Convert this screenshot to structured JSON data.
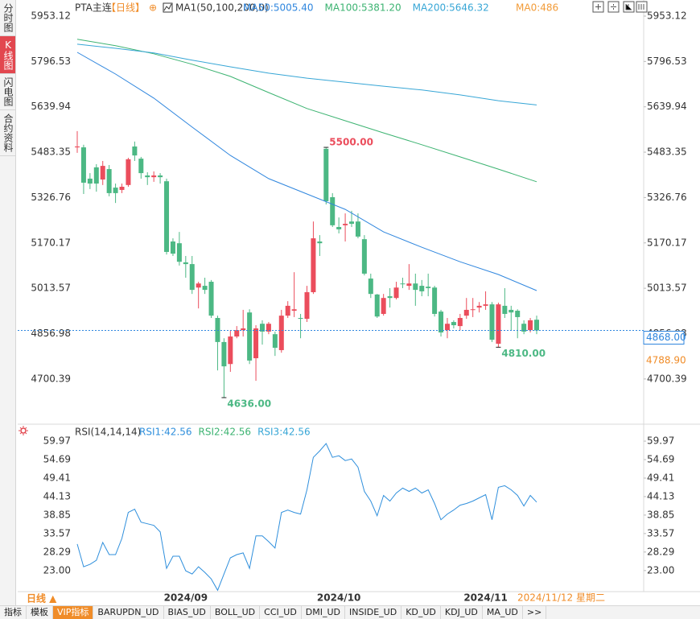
{
  "sidebar": {
    "tabs": [
      "分时图",
      "K线图",
      "闪电图",
      "合约资料"
    ]
  },
  "header": {
    "symbol": "PTA主连",
    "period": "【日线】",
    "add": "⊕",
    "indicator": "MA1(50,100,200,0)",
    "extra": {
      "text": "MA0:486",
      "color": "#f29b38"
    }
  },
  "date_label": "2024/11/12 星期二",
  "footer": {
    "period": "日线 ▲",
    "tabs": [
      "指标",
      "模板",
      "VIP指标",
      "BARUPDN_UD",
      "BIAS_UD",
      "BOLL_UD",
      "CCI_UD",
      "DMI_UD",
      "INSIDE_UD",
      "KD_UD",
      "KDJ_UD",
      "MA_UD",
      ">>"
    ]
  },
  "chart_data": [
    {
      "type": "candlestick",
      "categories": [
        null,
        null,
        null,
        null,
        null,
        null,
        null,
        null,
        null,
        null,
        null,
        null,
        null,
        null,
        null,
        null,
        null,
        "2024/09",
        null,
        null,
        null,
        null,
        null,
        null,
        null,
        null,
        null,
        null,
        null,
        null,
        null,
        null,
        null,
        null,
        null,
        null,
        null,
        null,
        null,
        null,
        null,
        "2024/10",
        null,
        null,
        null,
        null,
        null,
        null,
        null,
        null,
        null,
        null,
        null,
        null,
        null,
        null,
        null,
        null,
        null,
        null,
        null,
        null,
        null,
        null,
        "2024/11",
        null,
        null,
        null,
        null,
        null,
        null,
        null,
        null
      ],
      "open": [
        5500,
        5500,
        5392,
        5431,
        5389,
        5425,
        5361,
        5353,
        5370,
        5503,
        5461,
        5403,
        5397,
        5403,
        5383,
        5175,
        5169,
        5103,
        5097,
        5016,
        5022,
        5036,
        4911,
        4828,
        4752,
        4847,
        4869,
        4930,
        4772,
        4891,
        4864,
        4855,
        4800,
        4919,
        4936,
        4911,
        4908,
        5000,
        5175,
        5495,
        5328,
        5225,
        5231,
        5244,
        5244,
        5183,
        5047,
        4992,
        4925,
        4986,
        4980,
        5030,
        5022,
        5030,
        5022,
        5019,
        5016,
        4933,
        4869,
        4897,
        4883,
        4919,
        4939,
        4947,
        4953,
        4958,
        4822,
        4953,
        4939,
        4936,
        4891,
        4869,
        4905
      ],
      "close": [
        5503,
        5378,
        5375,
        5375,
        5436,
        5342,
        5342,
        5364,
        5459,
        5472,
        5411,
        5397,
        5403,
        5397,
        5139,
        5133,
        5105,
        5097,
        5008,
        5030,
        5008,
        4919,
        4828,
        4744,
        4847,
        4869,
        4875,
        4764,
        4875,
        4864,
        4891,
        4808,
        4919,
        4953,
        4941,
        4908,
        5000,
        5186,
        5169,
        5314,
        5231,
        5217,
        5236,
        5236,
        5192,
        5064,
        4994,
        4916,
        4980,
        4980,
        5016,
        5028,
        5030,
        5008,
        5003,
        5014,
        4925,
        4861,
        4891,
        4886,
        4911,
        4939,
        4941,
        4953,
        4958,
        4836,
        4958,
        4925,
        4930,
        4914,
        4864,
        4903,
        4868
      ],
      "high": [
        5556,
        5509,
        5411,
        5442,
        5453,
        5439,
        5375,
        5375,
        5464,
        5520,
        5467,
        5414,
        5417,
        5411,
        5392,
        5186,
        5208,
        5125,
        5125,
        5036,
        5050,
        5042,
        4919,
        4841,
        4869,
        4883,
        4939,
        4941,
        4886,
        4903,
        4897,
        4864,
        4939,
        4969,
        5069,
        4925,
        5022,
        5244,
        5197,
        5500,
        5342,
        5258,
        5272,
        5281,
        5272,
        5197,
        5064,
        4994,
        4994,
        5014,
        5036,
        5050,
        5097,
        5064,
        5042,
        5064,
        5022,
        4939,
        4911,
        4903,
        4925,
        4980,
        4980,
        4966,
        5003,
        4966,
        4964,
        5014,
        4953,
        4941,
        4903,
        4911,
        4919
      ],
      "low": [
        5481,
        5339,
        5356,
        5347,
        5370,
        5331,
        5308,
        5342,
        5364,
        5453,
        5392,
        5370,
        5381,
        5375,
        5130,
        5125,
        5092,
        5050,
        4994,
        4944,
        4994,
        4911,
        4730,
        4636,
        4725,
        4841,
        4847,
        4752,
        4694,
        4819,
        4855,
        4780,
        4791,
        4911,
        4914,
        4841,
        4897,
        4994,
        5125,
        5303,
        5225,
        5203,
        5175,
        5225,
        5186,
        5058,
        4980,
        4911,
        4919,
        4947,
        4975,
        5014,
        5008,
        4953,
        4986,
        4986,
        4916,
        4847,
        4841,
        4875,
        4869,
        4908,
        4914,
        4930,
        4939,
        4828,
        4810,
        4911,
        4869,
        4841,
        4855,
        4861,
        4855
      ],
      "up_color": "#eb4d5c",
      "down_color": "#4cb884",
      "ylim": [
        4563.7,
        5975.35
      ],
      "yticks": [
        5953.12,
        5796.53,
        5639.94,
        5483.35,
        5326.76,
        5170.17,
        5013.57,
        4856.98,
        4700.39
      ],
      "series": [
        {
          "name": "MA50:5005.40",
          "color": "#2f86de",
          "x": [
            0,
            6,
            12,
            18,
            24,
            30,
            36,
            42,
            48,
            54,
            60,
            66,
            72
          ],
          "values": [
            5828,
            5753,
            5670,
            5570,
            5472,
            5392,
            5339,
            5286,
            5208,
            5155,
            5105,
            5061,
            5005.4
          ]
        },
        {
          "name": "MA100:5381.20",
          "color": "#3cb371",
          "x": [
            0,
            6,
            12,
            18,
            24,
            30,
            36,
            42,
            48,
            54,
            60,
            66,
            72
          ],
          "values": [
            5873,
            5851,
            5823,
            5787,
            5745,
            5689,
            5634,
            5592,
            5550,
            5509,
            5467,
            5425,
            5381.2
          ]
        },
        {
          "name": "MA200:5646.32",
          "color": "#37a6d6",
          "x": [
            0,
            6,
            12,
            18,
            24,
            30,
            36,
            42,
            48,
            54,
            60,
            66,
            72
          ],
          "values": [
            5856,
            5842,
            5826,
            5801,
            5778,
            5756,
            5739,
            5725,
            5711,
            5698,
            5681,
            5661,
            5646.32
          ]
        }
      ],
      "annotations": [
        "5500.00",
        "4636.00",
        "4810.00"
      ],
      "price_lines": [
        {
          "value": 4868,
          "label": "4868.00",
          "color": "#2f86de",
          "dashed": true
        },
        {
          "value": 4788.9,
          "label": "4788.90",
          "color": "#f08c28",
          "dashed": false
        }
      ]
    },
    {
      "type": "line",
      "title": "RSI(14,14,14)",
      "ylim": [
        16.98,
        61.82
      ],
      "yticks": [
        59.97,
        54.69,
        49.41,
        44.13,
        38.85,
        33.57,
        28.29,
        {
          "value": 23,
          "label": "23.00"
        }
      ],
      "series": [
        {
          "name": "RSI1:42.56",
          "color": "#2f8fdc",
          "values": [
            30.57,
            24.09,
            24.78,
            25.94,
            31.03,
            27.56,
            27.56,
            32.19,
            39.6,
            40.53,
            36.82,
            36.36,
            35.9,
            34.04,
            23.63,
            27.1,
            27.1,
            22.93,
            22.01,
            24.09,
            22.47,
            20.62,
            17.38,
            22.01,
            26.64,
            27.56,
            28.03,
            23.63,
            32.89,
            32.89,
            31.27,
            29.41,
            39.6,
            40.29,
            39.6,
            39.14,
            46.08,
            55.34,
            57.19,
            59.28,
            55.34,
            55.8,
            54.41,
            54.88,
            52.56,
            45.62,
            42.84,
            38.67,
            44.46,
            42.84,
            45.16,
            46.54,
            45.62,
            46.54,
            45.16,
            46.08,
            42.15,
            37.52,
            39.14,
            40.29,
            41.68,
            42.15,
            42.84,
            43.77,
            44.69,
            37.52,
            46.78,
            47.24,
            46.08,
            44.46,
            41.45,
            44.46,
            42.56
          ]
        }
      ],
      "legend_extra": [
        {
          "name": "RSI2:42.56",
          "color": "#3cb371"
        },
        {
          "name": "RSI3:42.56",
          "color": "#37a6d6"
        }
      ]
    }
  ]
}
